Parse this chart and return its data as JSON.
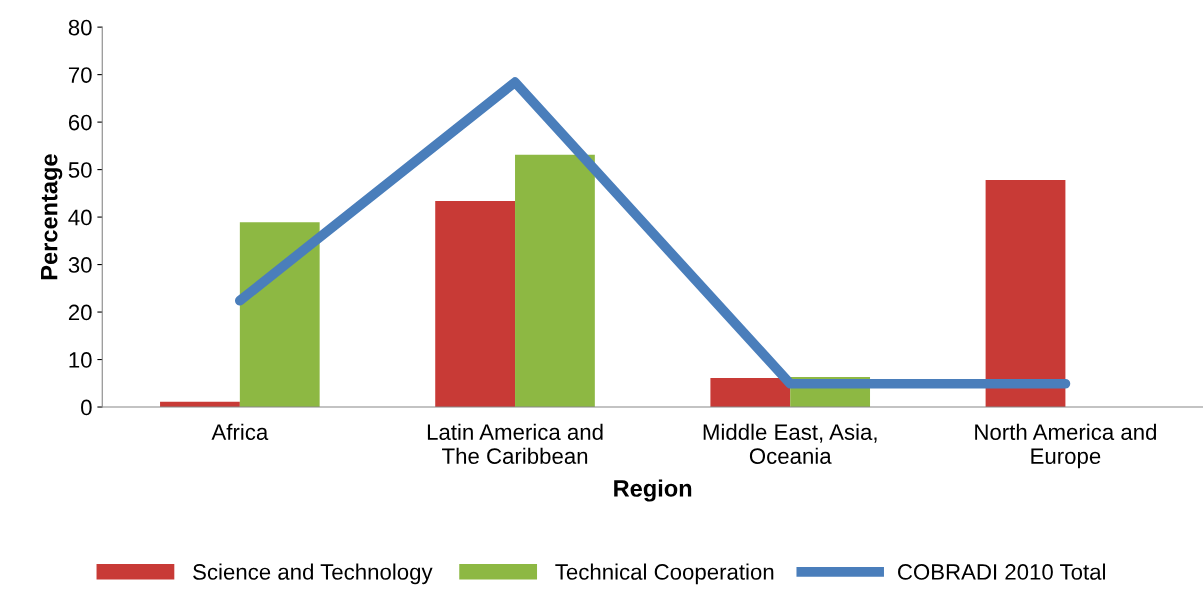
{
  "chart_data": {
    "type": "bar",
    "xlabel": "Region",
    "ylabel": "Percentage",
    "categories": [
      "Africa",
      "Latin America and\nThe Caribbean",
      "Middle East, Asia,\nOceania",
      "North America and\nEurope"
    ],
    "series": [
      {
        "name": "Science and Technology",
        "color": "#c83a36",
        "values": [
          1.1,
          43.4,
          6.1,
          47.8
        ]
      },
      {
        "name": "Technical Cooperation",
        "color": "#8db843",
        "values": [
          38.9,
          53.1,
          6.3,
          null
        ]
      },
      {
        "name": "COBRADI 2010 Total",
        "type": "line",
        "color": "#4a7ebb",
        "values": [
          22.4,
          68.4,
          4.9,
          4.9
        ]
      }
    ],
    "ylim": [
      0,
      80
    ],
    "yticks": [
      0,
      10,
      20,
      30,
      40,
      50,
      60,
      70,
      80
    ],
    "grid": false,
    "legend": "bottom"
  }
}
